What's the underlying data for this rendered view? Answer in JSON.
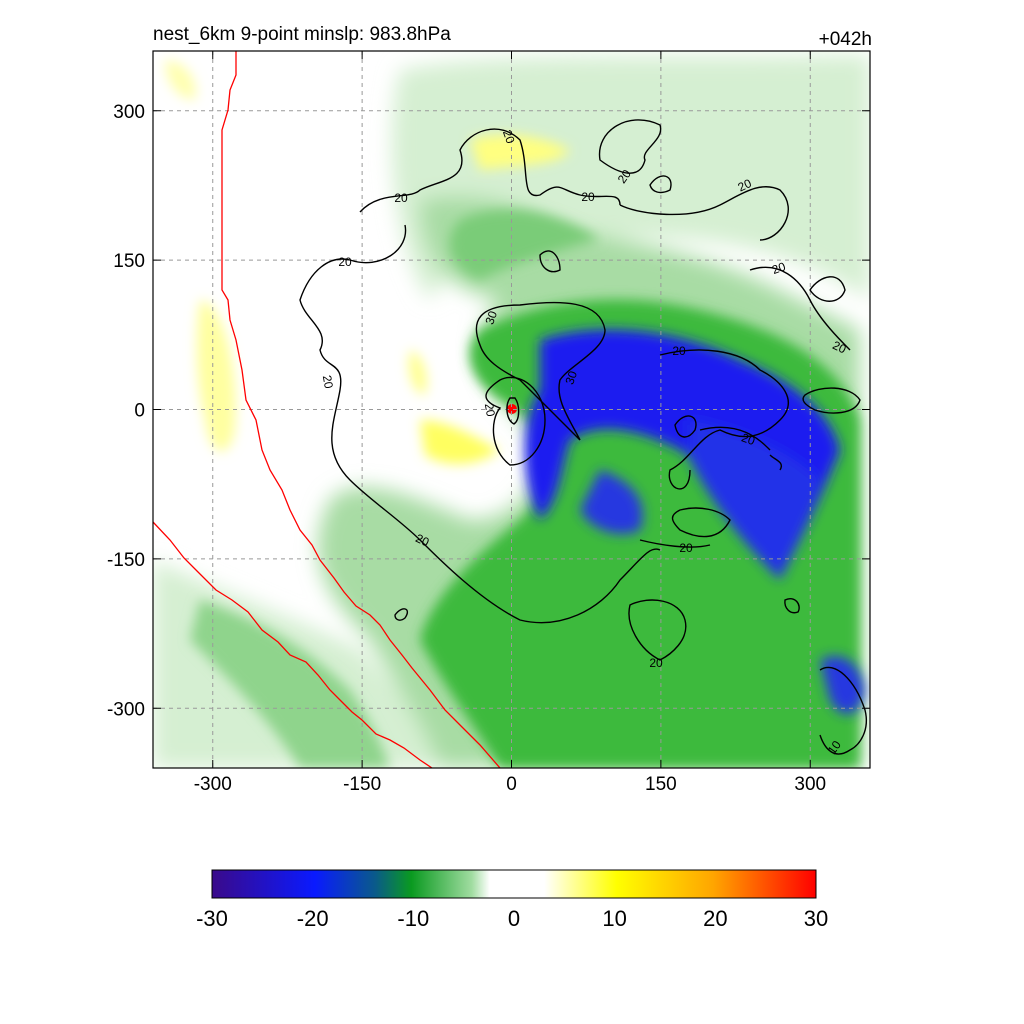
{
  "header": {
    "title": "nest_6km  9-point minslp: 983.8hPa",
    "time_label": "+042h"
  },
  "chart_data": {
    "type": "heatmap",
    "title": "nest_6km  9-point minslp: 983.8hPa",
    "forecast_hour": "+042h",
    "xlim": [
      -360,
      360
    ],
    "ylim": [
      -360,
      360
    ],
    "x_ticks": [
      -300,
      -150,
      0,
      150,
      300
    ],
    "y_ticks": [
      300,
      150,
      0,
      -150,
      -300
    ],
    "grid": true,
    "colorbar": {
      "range": [
        -30,
        30
      ],
      "ticks": [
        -30,
        -20,
        -10,
        0,
        10,
        20,
        30
      ],
      "colors": {
        "purple": "#3a0a8a",
        "blue": "#0a1aff",
        "dark_green": "#0a8a3a",
        "green": "#0ab020",
        "light_green": "#c8ecc8",
        "white": "#ffffff",
        "yellow": "#ffff00",
        "orange": "#ffa500",
        "red": "#ff0000"
      }
    },
    "contour_labels": [
      "20",
      "20",
      "20",
      "20",
      "20",
      "20",
      "20",
      "20",
      "20",
      "30",
      "30",
      "20",
      "20",
      "20",
      "20",
      "20",
      "20",
      "10"
    ],
    "center_marker": {
      "x": 0,
      "y": 0,
      "color": "#ff0000"
    }
  }
}
